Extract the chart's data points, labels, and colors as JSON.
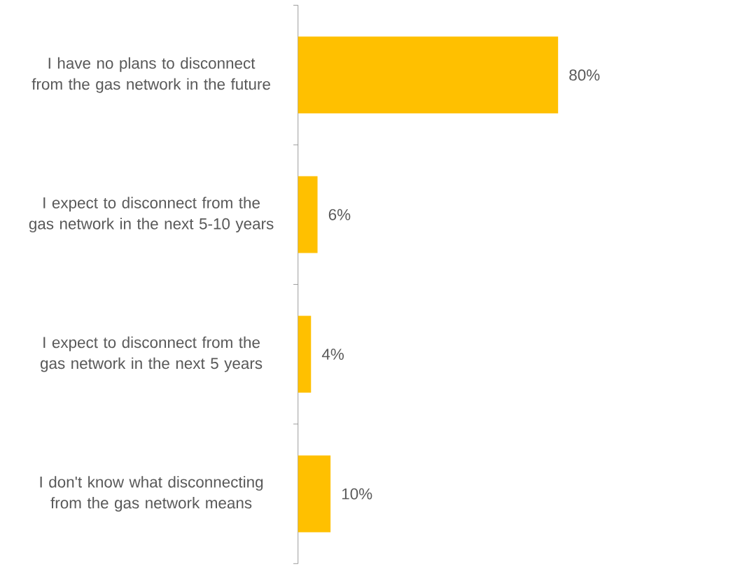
{
  "chart_data": {
    "type": "bar",
    "orientation": "horizontal",
    "categories": [
      "I have no plans to disconnect from the gas network in the future",
      "I expect to disconnect from the gas network in the next 5-10 years",
      "I expect to disconnect from the gas network in the next 5 years",
      "I don't know what disconnecting from the gas network means"
    ],
    "values": [
      80,
      6,
      4,
      10
    ],
    "value_labels": [
      "80%",
      "6%",
      "4%",
      "10%"
    ],
    "color": "#ffc000"
  }
}
